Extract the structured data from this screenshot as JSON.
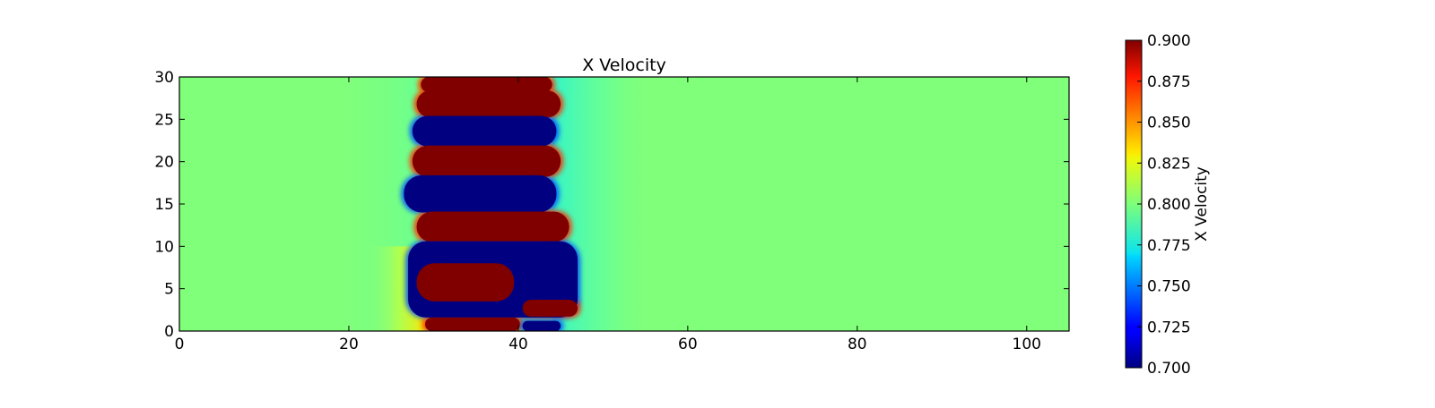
{
  "chart_data": {
    "type": "heatmap",
    "title": "X Velocity",
    "xlabel": "",
    "ylabel": "",
    "xlim": [
      0,
      105
    ],
    "ylim": [
      0,
      30
    ],
    "x_ticks": [
      0,
      20,
      40,
      60,
      80,
      100
    ],
    "x_tick_labels": [
      "0",
      "20",
      "40",
      "60",
      "80",
      "100"
    ],
    "y_ticks": [
      0,
      5,
      10,
      15,
      20,
      25,
      30
    ],
    "y_tick_labels": [
      "0",
      "5",
      "10",
      "15",
      "20",
      "25",
      "30"
    ],
    "colormap": "jet",
    "background_value": 0.81,
    "colorbar": {
      "label": "X Velocity",
      "range": [
        0.7,
        0.9
      ],
      "ticks": [
        0.7,
        0.725,
        0.75,
        0.775,
        0.8,
        0.825,
        0.85,
        0.875,
        0.9
      ],
      "tick_labels": [
        "0.700",
        "0.725",
        "0.750",
        "0.775",
        "0.800",
        "0.825",
        "0.850",
        "0.875",
        "0.900"
      ]
    },
    "structures": [
      {
        "kind": "high",
        "value": 0.9,
        "x": [
          28.5,
          44
        ],
        "y": [
          28.2,
          30
        ]
      },
      {
        "kind": "high",
        "value": 0.9,
        "x": [
          28,
          45
        ],
        "y": [
          25.2,
          28.4
        ]
      },
      {
        "kind": "low",
        "value": 0.7,
        "x": [
          27.5,
          44.5
        ],
        "y": [
          21.8,
          25.4
        ]
      },
      {
        "kind": "high",
        "value": 0.9,
        "x": [
          27.5,
          45
        ],
        "y": [
          18.2,
          21.9
        ]
      },
      {
        "kind": "low",
        "value": 0.7,
        "x": [
          26.5,
          44.5
        ],
        "y": [
          14,
          18.4
        ]
      },
      {
        "kind": "high",
        "value": 0.9,
        "x": [
          28,
          46
        ],
        "y": [
          10.5,
          14.1
        ]
      },
      {
        "kind": "low",
        "value": 0.7,
        "x": [
          27,
          47
        ],
        "y": [
          1.6,
          10.6
        ]
      },
      {
        "kind": "high",
        "value": 0.9,
        "x": [
          28,
          39.5
        ],
        "y": [
          3.5,
          8
        ]
      },
      {
        "kind": "high",
        "value": 0.9,
        "x": [
          40.5,
          47
        ],
        "y": [
          1.7,
          3.7
        ]
      },
      {
        "kind": "high",
        "value": 0.9,
        "x": [
          29,
          40.2
        ],
        "y": [
          0,
          1.6
        ]
      },
      {
        "kind": "low",
        "value": 0.7,
        "x": [
          40.5,
          45
        ],
        "y": [
          0,
          1.2
        ]
      }
    ]
  }
}
